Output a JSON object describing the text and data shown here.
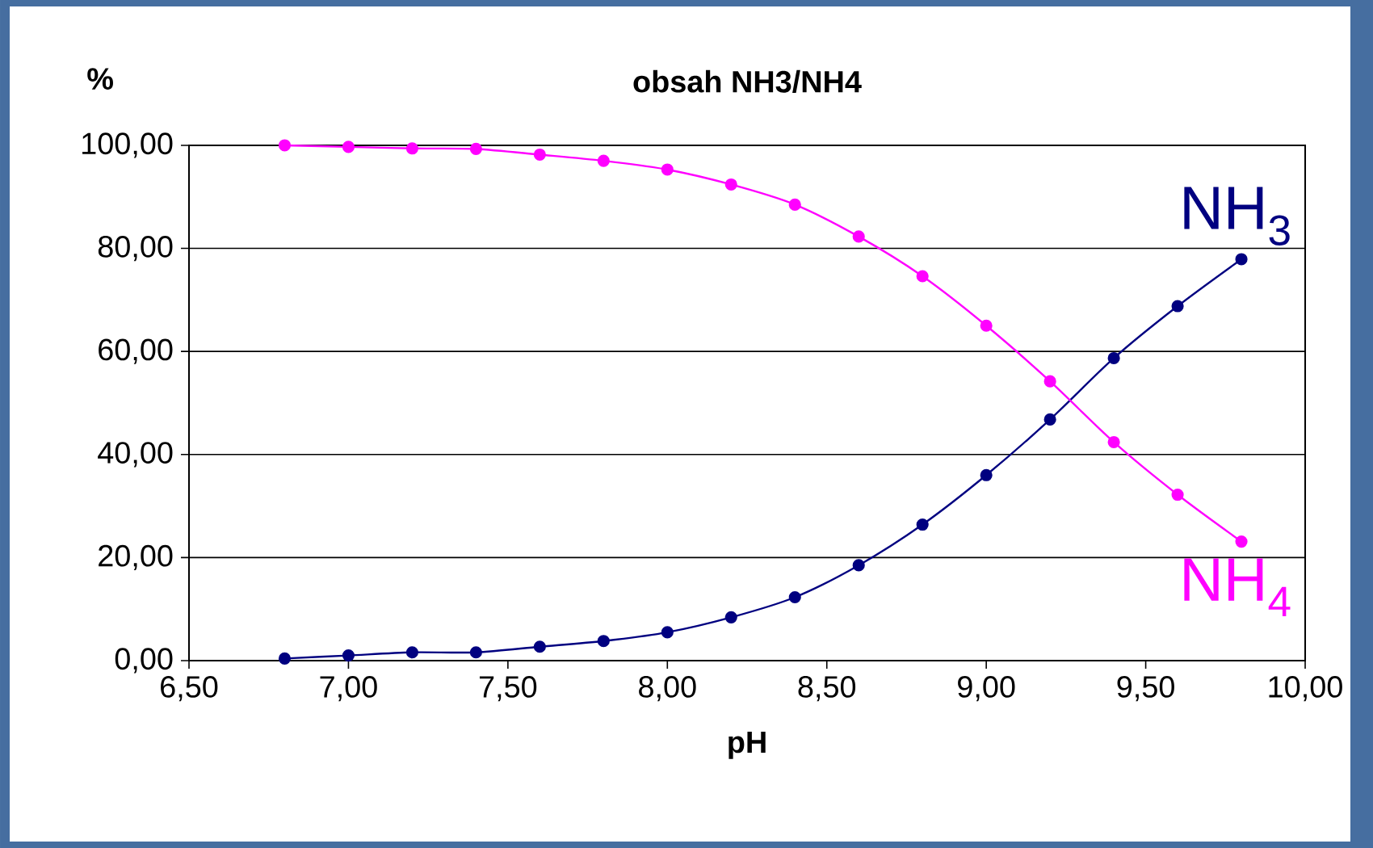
{
  "chart_data": {
    "type": "line",
    "title": "obsah NH3/NH4",
    "xlabel": "pH",
    "ylabel": "%",
    "x": [
      6.8,
      7.0,
      7.2,
      7.4,
      7.6,
      7.8,
      8.0,
      8.2,
      8.4,
      8.6,
      8.8,
      9.0,
      9.2,
      9.4,
      9.6,
      9.8
    ],
    "series": [
      {
        "name": "NH$_{3}$",
        "color": "#000080",
        "values": [
          0.4,
          1.0,
          1.6,
          1.6,
          2.7,
          3.8,
          5.5,
          8.4,
          12.3,
          18.5,
          26.4,
          36.0,
          46.8,
          58.7,
          68.8,
          77.9
        ]
      },
      {
        "name": "NH$_{4}$",
        "color": "#ff00ff",
        "values": [
          100.0,
          99.7,
          99.4,
          99.3,
          98.2,
          97.0,
          95.3,
          92.4,
          88.5,
          82.3,
          74.6,
          65.0,
          54.2,
          42.4,
          32.2,
          23.1
        ]
      }
    ],
    "xlim": [
      6.5,
      10.0
    ],
    "xticks": [
      {
        "value": 6.5,
        "label": "6,50"
      },
      {
        "value": 7.0,
        "label": "7,00"
      },
      {
        "value": 7.5,
        "label": "7,50"
      },
      {
        "value": 8.0,
        "label": "8,00"
      },
      {
        "value": 8.5,
        "label": "8,50"
      },
      {
        "value": 9.0,
        "label": "9,00"
      },
      {
        "value": 9.5,
        "label": "9,50"
      },
      {
        "value": 10.0,
        "label": "10,00"
      }
    ],
    "ylim": [
      0,
      100
    ],
    "yticks": [
      {
        "value": 0,
        "label": "0,00"
      },
      {
        "value": 20,
        "label": "20,00"
      },
      {
        "value": 40,
        "label": "40,00"
      },
      {
        "value": 60,
        "label": "60,00"
      },
      {
        "value": 80,
        "label": "80,00"
      },
      {
        "value": 100,
        "label": "100,00"
      }
    ],
    "grid": "y",
    "marker": "circle",
    "line_style": "solid"
  }
}
